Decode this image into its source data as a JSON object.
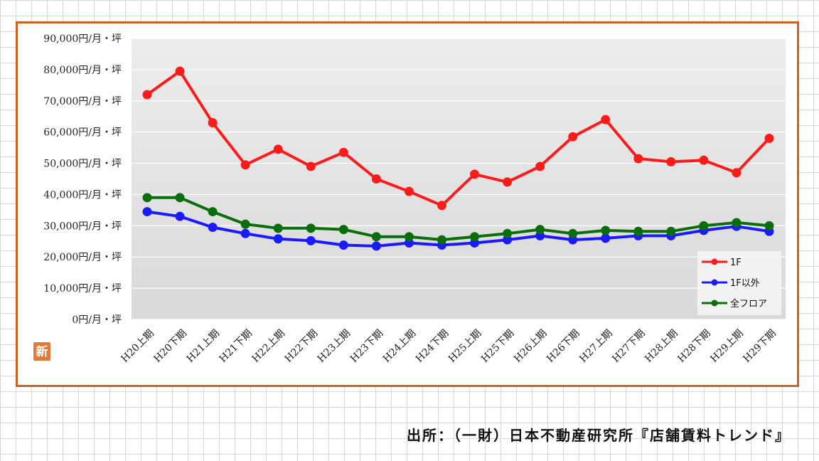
{
  "chart_data": {
    "type": "line",
    "categories": [
      "H20上期",
      "H20下期",
      "H21上期",
      "H21下期",
      "H22上期",
      "H22下期",
      "H23上期",
      "H23下期",
      "H24上期",
      "H24下期",
      "H25上期",
      "H25下期",
      "H26上期",
      "H26下期",
      "H27上期",
      "H27下期",
      "H28上期",
      "H28下期",
      "H29上期",
      "H29下期"
    ],
    "y_ticks": [
      "0円/月・坪",
      "10,000円/月・坪",
      "20,000円/月・坪",
      "30,000円/月・坪",
      "40,000円/月・坪",
      "50,000円/月・坪",
      "60,000円/月・坪",
      "70,000円/月・坪",
      "80,000円/月・坪",
      "90,000円/月・坪"
    ],
    "ylim": [
      0,
      90000
    ],
    "grid": true,
    "legend_position": "bottom-right",
    "series": [
      {
        "name": "1F",
        "color": "#ff1a1a",
        "values": [
          72000,
          79500,
          63000,
          49500,
          54500,
          49000,
          53500,
          45000,
          41000,
          36500,
          46500,
          44000,
          49000,
          58500,
          64000,
          51500,
          50500,
          51000,
          47000,
          58000
        ]
      },
      {
        "name": "1F以外",
        "color": "#1a1aff",
        "values": [
          34500,
          33000,
          29500,
          27500,
          25800,
          25200,
          23800,
          23500,
          24500,
          23800,
          24500,
          25500,
          26800,
          25500,
          26000,
          26800,
          26800,
          28500,
          29800,
          28200
        ]
      },
      {
        "name": "全フロア",
        "color": "#0a6e0a",
        "values": [
          39000,
          39000,
          34500,
          30500,
          29200,
          29200,
          28800,
          26500,
          26500,
          25500,
          26500,
          27500,
          28800,
          27500,
          28500,
          28200,
          28200,
          30000,
          31000,
          30000
        ]
      }
    ]
  },
  "badge": {
    "text": "新",
    "color": "#e07a3a"
  },
  "source_note": "出所：（一財）日本不動産研究所『店舗賃料トレンド』"
}
